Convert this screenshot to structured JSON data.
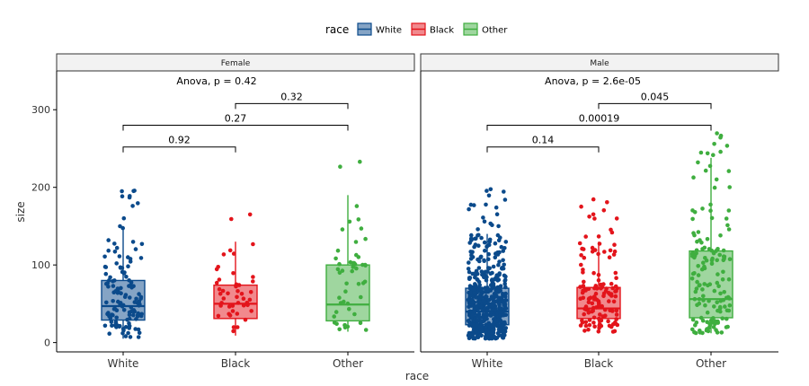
{
  "chart_data": {
    "type": "box",
    "legend": {
      "title": "race",
      "position": "top",
      "entries": [
        {
          "label": "White",
          "color": "#0b4a8b"
        },
        {
          "label": "Black",
          "color": "#e3141b"
        },
        {
          "label": "Other",
          "color": "#3fae3f"
        }
      ]
    },
    "xlabel": "race",
    "ylabel": "size",
    "ylim": [
      -12,
      350
    ],
    "yticks": [
      0,
      100,
      200,
      300
    ],
    "categories": [
      "White",
      "Black",
      "Other"
    ],
    "panels": [
      {
        "strip": "Female",
        "test_label": "Anova, p = 0.42",
        "boxes": [
          {
            "category": "White",
            "q1": 29,
            "median": 47,
            "q3": 80,
            "whisker_low": 5,
            "whisker_high": 148
          },
          {
            "category": "Black",
            "q1": 31,
            "median": 50,
            "q3": 74,
            "whisker_low": 9,
            "whisker_high": 130
          },
          {
            "category": "Other",
            "q1": 28,
            "median": 49,
            "q3": 100,
            "whisker_low": 14,
            "whisker_high": 190
          }
        ],
        "comparisons": [
          {
            "from": "White",
            "to": "Black",
            "label": "0.92",
            "y": 252
          },
          {
            "from": "White",
            "to": "Other",
            "label": "0.27",
            "y": 280
          },
          {
            "from": "Black",
            "to": "Other",
            "label": "0.32",
            "y": 308
          }
        ]
      },
      {
        "strip": "Male",
        "test_label": "Anova, p = 2.6e-05",
        "boxes": [
          {
            "category": "White",
            "q1": 23,
            "median": 40,
            "q3": 70,
            "whisker_low": 5,
            "whisker_high": 140
          },
          {
            "category": "Black",
            "q1": 31,
            "median": 44,
            "q3": 71,
            "whisker_low": 14,
            "whisker_high": 130
          },
          {
            "category": "Other",
            "q1": 32,
            "median": 56,
            "q3": 118,
            "whisker_low": 12,
            "whisker_high": 238
          }
        ],
        "comparisons": [
          {
            "from": "White",
            "to": "Black",
            "label": "0.14",
            "y": 252
          },
          {
            "from": "White",
            "to": "Other",
            "label": "0.00019",
            "y": 280
          },
          {
            "from": "Black",
            "to": "Other",
            "label": "0.045",
            "y": 308
          }
        ]
      }
    ]
  }
}
